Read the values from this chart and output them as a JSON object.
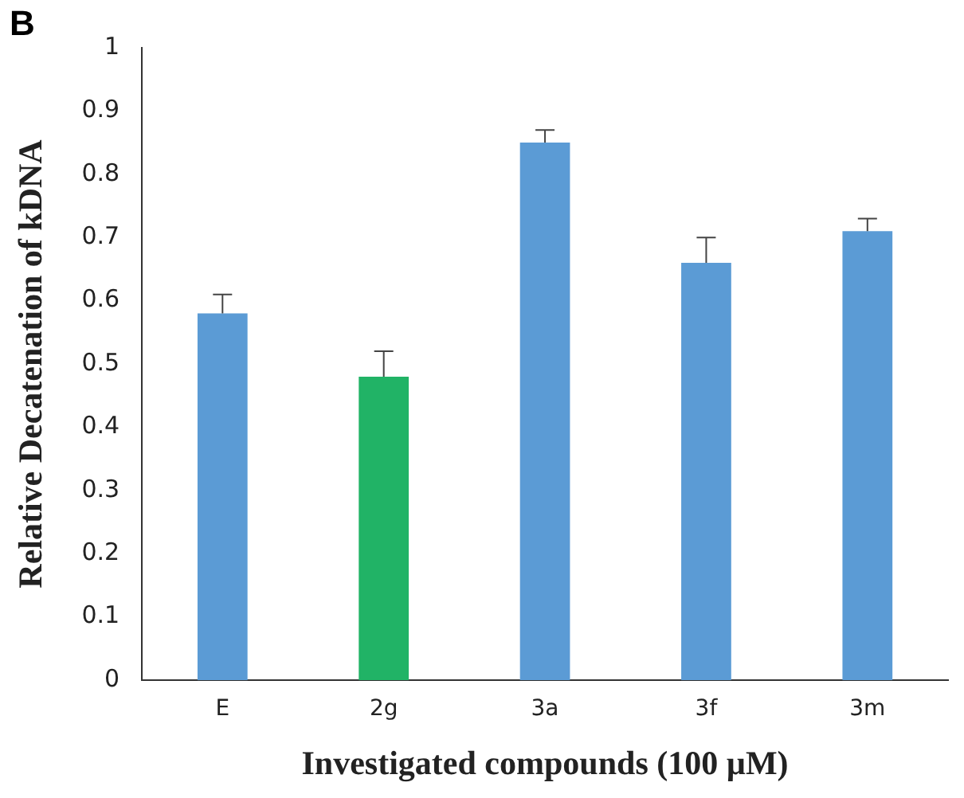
{
  "chart_data": {
    "type": "bar",
    "title": "B",
    "xlabel": "Investigated compounds (100 µM)",
    "ylabel": "Relative Decatenation of kDNA",
    "categories": [
      "E",
      "2g",
      "3a",
      "3f",
      "3m"
    ],
    "values": [
      0.58,
      0.48,
      0.85,
      0.66,
      0.71
    ],
    "colors": [
      "#5b9bd5",
      "#21b366",
      "#5b9bd5",
      "#5b9bd5",
      "#5b9bd5"
    ],
    "errors": [
      [
        0.58,
        0.61
      ],
      [
        0.48,
        0.52
      ],
      [
        0.85,
        0.87
      ],
      [
        0.66,
        0.7
      ],
      [
        0.71,
        0.73
      ]
    ],
    "ylim": [
      0,
      1
    ],
    "yticks": [
      0,
      0.1,
      0.2,
      0.3,
      0.4,
      0.5,
      0.6,
      0.7,
      0.8,
      0.9,
      1
    ],
    "grid": false,
    "legend": false
  }
}
